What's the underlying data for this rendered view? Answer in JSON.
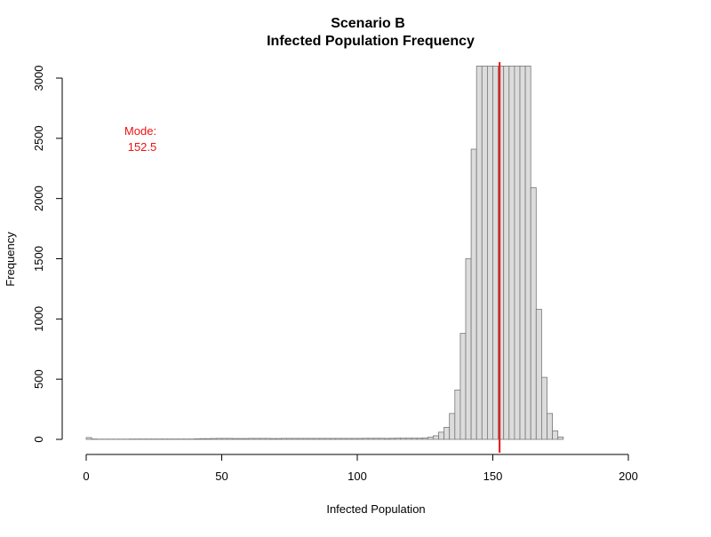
{
  "chart_data": {
    "type": "histogram",
    "title": "Scenario B",
    "subtitle": "Infected Population Frequency",
    "xlabel": "Infected Population",
    "ylabel": "Frequency",
    "xlim": [
      0,
      200
    ],
    "ylim": [
      0,
      3000
    ],
    "x_ticks": [
      "0",
      "50",
      "100",
      "150",
      "200"
    ],
    "y_ticks": [
      "0",
      "500",
      "1000",
      "1500",
      "2000",
      "2500",
      "3000"
    ],
    "bin_width": 2,
    "bin_start": 0,
    "values": [
      15,
      3,
      2,
      2,
      2,
      2,
      2,
      2,
      3,
      3,
      3,
      3,
      3,
      3,
      3,
      3,
      3,
      3,
      3,
      3,
      5,
      6,
      6,
      7,
      8,
      8,
      8,
      7,
      7,
      7,
      8,
      8,
      8,
      8,
      7,
      7,
      8,
      8,
      8,
      8,
      8,
      8,
      8,
      8,
      8,
      8,
      8,
      8,
      8,
      8,
      8,
      9,
      9,
      9,
      9,
      8,
      9,
      10,
      10,
      10,
      10,
      10,
      12,
      18,
      30,
      60,
      100,
      215,
      410,
      880,
      1500,
      2410,
      3100,
      3100,
      3100,
      3100,
      3100,
      3100,
      3100,
      3100,
      3100,
      3100,
      2090,
      1080,
      515,
      215,
      70,
      20
    ],
    "annotation": {
      "label": "Mode:",
      "value": "152.5",
      "x": 152.5,
      "color": "#ee1111"
    },
    "bar_fill": "#dcdcdc",
    "bar_stroke": "#777777",
    "grid": false
  }
}
